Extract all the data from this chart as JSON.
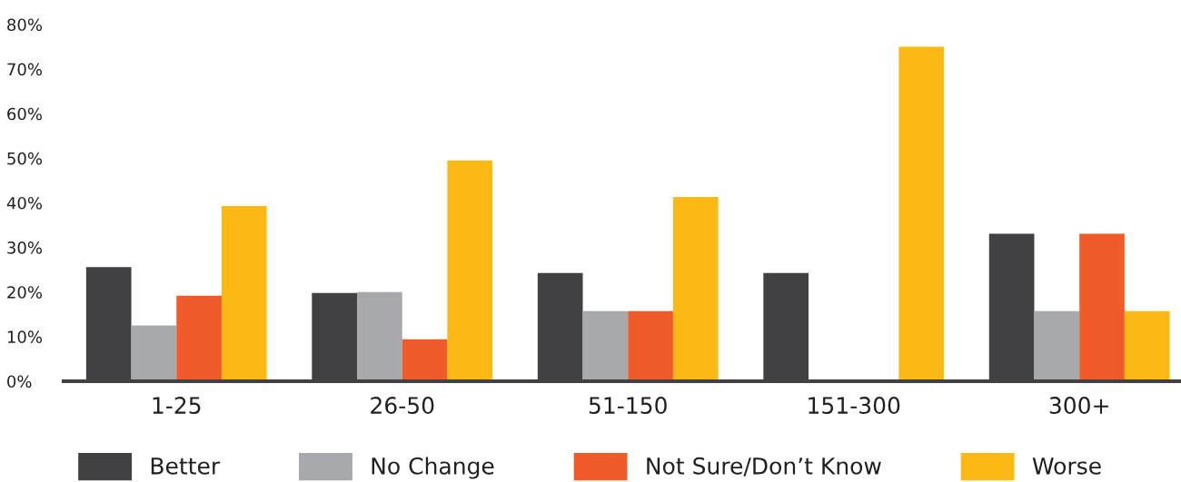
{
  "chart_data": {
    "type": "bar",
    "categories": [
      "1-25",
      "26-50",
      "51-150",
      "151-300",
      "300+"
    ],
    "series": [
      {
        "name": "Better",
        "color": "#414042",
        "values": [
          25.6,
          19.8,
          24.3,
          24.3,
          33.1
        ]
      },
      {
        "name": "No Change",
        "color": "#a7a9ac",
        "values": [
          12.5,
          20,
          15.7,
          0,
          15.7
        ]
      },
      {
        "name": "Not Sure/Don’t Know",
        "color": "#f15a29",
        "values": [
          19.2,
          9.4,
          15.7,
          0,
          33.1
        ]
      },
      {
        "name": "Worse",
        "color": "#fdb913",
        "values": [
          39.3,
          49.5,
          41.3,
          75,
          15.7
        ]
      }
    ],
    "ylim": [
      0,
      80
    ],
    "yticks": [
      {
        "value": 0,
        "label": "0%"
      },
      {
        "value": 10,
        "label": "10%"
      },
      {
        "value": 20,
        "label": "20%"
      },
      {
        "value": 30,
        "label": "30%"
      },
      {
        "value": 40,
        "label": "40%"
      },
      {
        "value": 50,
        "label": "50%"
      },
      {
        "value": 60,
        "label": "60%"
      },
      {
        "value": 70,
        "label": "70%"
      },
      {
        "value": 80,
        "label": "80%"
      }
    ],
    "grid": false,
    "legend": "bottom"
  }
}
